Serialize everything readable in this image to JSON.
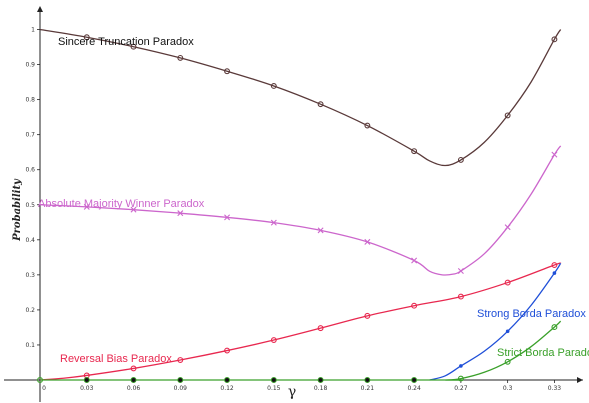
{
  "chart_data": {
    "type": "line",
    "xlabel": "γ",
    "ylabel": "Probability",
    "xlim": [
      0,
      0.34
    ],
    "ylim": [
      0,
      1.05
    ],
    "xticks": [
      "0",
      "0.03",
      "0.06",
      "0.09",
      "0.12",
      "0.15",
      "0.18",
      "0.21",
      "0.24",
      "0.27",
      "0.3",
      "0.33"
    ],
    "yticks": [
      "0.1",
      "0.2",
      "0.3",
      "0.4",
      "0.5",
      "0.6",
      "0.7",
      "0.8",
      "0.9",
      "1"
    ],
    "grid": false,
    "series": [
      {
        "name": "Sincere Truncation Paradox",
        "color": "#5a3a3a",
        "marker": "circle",
        "points": [
          [
            0.03,
            0.978
          ],
          [
            0.06,
            0.951
          ],
          [
            0.09,
            0.919
          ],
          [
            0.12,
            0.881
          ],
          [
            0.15,
            0.839
          ],
          [
            0.18,
            0.787
          ],
          [
            0.21,
            0.726
          ],
          [
            0.24,
            0.653
          ],
          [
            0.27,
            0.628
          ],
          [
            0.3,
            0.755
          ],
          [
            0.33,
            0.972
          ]
        ],
        "curve": [
          [
            0,
            1.0
          ],
          [
            0.03,
            0.978
          ],
          [
            0.06,
            0.951
          ],
          [
            0.09,
            0.919
          ],
          [
            0.12,
            0.881
          ],
          [
            0.15,
            0.839
          ],
          [
            0.18,
            0.787
          ],
          [
            0.21,
            0.726
          ],
          [
            0.24,
            0.653
          ],
          [
            0.25,
            0.625
          ],
          [
            0.26,
            0.612
          ],
          [
            0.27,
            0.628
          ],
          [
            0.285,
            0.678
          ],
          [
            0.3,
            0.755
          ],
          [
            0.315,
            0.85
          ],
          [
            0.33,
            0.972
          ],
          [
            0.334,
            1.0
          ]
        ]
      },
      {
        "name": "Absolute Majority Winner Paradox",
        "color": "#cc66cc",
        "marker": "x",
        "points": [
          [
            0.03,
            0.494
          ],
          [
            0.06,
            0.486
          ],
          [
            0.09,
            0.476
          ],
          [
            0.12,
            0.464
          ],
          [
            0.15,
            0.449
          ],
          [
            0.18,
            0.427
          ],
          [
            0.21,
            0.394
          ],
          [
            0.24,
            0.341
          ],
          [
            0.27,
            0.311
          ],
          [
            0.3,
            0.436
          ],
          [
            0.33,
            0.643
          ]
        ],
        "curve": [
          [
            0,
            0.5
          ],
          [
            0.03,
            0.494
          ],
          [
            0.06,
            0.486
          ],
          [
            0.09,
            0.476
          ],
          [
            0.12,
            0.464
          ],
          [
            0.15,
            0.449
          ],
          [
            0.18,
            0.427
          ],
          [
            0.21,
            0.394
          ],
          [
            0.24,
            0.341
          ],
          [
            0.25,
            0.31
          ],
          [
            0.258,
            0.3
          ],
          [
            0.265,
            0.302
          ],
          [
            0.27,
            0.311
          ],
          [
            0.285,
            0.36
          ],
          [
            0.3,
            0.436
          ],
          [
            0.315,
            0.53
          ],
          [
            0.33,
            0.643
          ],
          [
            0.334,
            0.668
          ]
        ]
      },
      {
        "name": "Reversal Bias Paradox",
        "color": "#e8284f",
        "marker": "circle",
        "points": [
          [
            0.03,
            0.013
          ],
          [
            0.06,
            0.033
          ],
          [
            0.09,
            0.057
          ],
          [
            0.12,
            0.084
          ],
          [
            0.15,
            0.114
          ],
          [
            0.18,
            0.148
          ],
          [
            0.21,
            0.183
          ],
          [
            0.24,
            0.212
          ],
          [
            0.27,
            0.238
          ],
          [
            0.3,
            0.278
          ],
          [
            0.33,
            0.328
          ]
        ],
        "curve": [
          [
            0,
            0
          ],
          [
            0.015,
            0.005
          ],
          [
            0.03,
            0.013
          ],
          [
            0.06,
            0.033
          ],
          [
            0.09,
            0.057
          ],
          [
            0.12,
            0.084
          ],
          [
            0.15,
            0.114
          ],
          [
            0.18,
            0.148
          ],
          [
            0.21,
            0.183
          ],
          [
            0.24,
            0.212
          ],
          [
            0.27,
            0.238
          ],
          [
            0.3,
            0.278
          ],
          [
            0.33,
            0.328
          ],
          [
            0.334,
            0.333
          ]
        ]
      },
      {
        "name": "Strong Borda Paradox",
        "color": "#1f4fd8",
        "marker": "dot",
        "points": [
          [
            0.27,
            0.04
          ],
          [
            0.3,
            0.139
          ],
          [
            0.33,
            0.305
          ]
        ],
        "curve": [
          [
            0.25,
            0
          ],
          [
            0.26,
            0.012
          ],
          [
            0.27,
            0.04
          ],
          [
            0.285,
            0.082
          ],
          [
            0.3,
            0.139
          ],
          [
            0.315,
            0.213
          ],
          [
            0.33,
            0.305
          ],
          [
            0.334,
            0.333
          ]
        ]
      },
      {
        "name": "Strict Borda Paradox",
        "color": "#3aa02a",
        "marker": "circle",
        "points": [
          [
            0,
            0
          ],
          [
            0.03,
            0
          ],
          [
            0.06,
            0
          ],
          [
            0.09,
            0
          ],
          [
            0.12,
            0
          ],
          [
            0.15,
            0
          ],
          [
            0.18,
            0
          ],
          [
            0.21,
            0
          ],
          [
            0.24,
            0
          ],
          [
            0.27,
            0.004
          ],
          [
            0.3,
            0.052
          ],
          [
            0.33,
            0.151
          ]
        ],
        "curve": [
          [
            0,
            0
          ],
          [
            0.25,
            0
          ],
          [
            0.26,
            0.0
          ],
          [
            0.27,
            0.004
          ],
          [
            0.285,
            0.022
          ],
          [
            0.3,
            0.052
          ],
          [
            0.315,
            0.095
          ],
          [
            0.33,
            0.151
          ],
          [
            0.334,
            0.168
          ]
        ]
      }
    ],
    "baseline_dots": [
      0.03,
      0.06,
      0.09,
      0.12,
      0.15,
      0.18,
      0.21,
      0.24
    ]
  }
}
